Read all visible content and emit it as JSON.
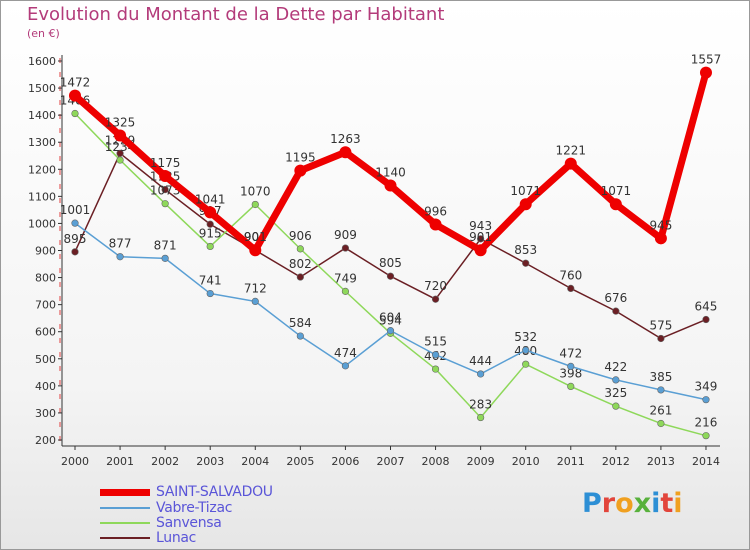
{
  "title": "Evolution du Montant de la Dette par Habitant",
  "subtitle": "(en €)",
  "logo_text": [
    "P",
    "r",
    "o",
    "x",
    "i",
    "t",
    "i"
  ],
  "colors": {
    "title": "#b33b7a",
    "legend_text": "#5a55d8"
  },
  "chart_data": {
    "type": "line",
    "x": [
      "2000",
      "2001",
      "2002",
      "2003",
      "2004",
      "2005",
      "2006",
      "2007",
      "2008",
      "2009",
      "2010",
      "2011",
      "2012",
      "2013",
      "2014"
    ],
    "ylim": [
      200,
      1600
    ],
    "yticks": [
      200,
      300,
      400,
      500,
      600,
      700,
      800,
      900,
      1000,
      1100,
      1200,
      1300,
      1400,
      1500,
      1600
    ],
    "grid": false,
    "legend_position": "bottom-left",
    "series": [
      {
        "name": "Lunac",
        "color": "#6b1f24",
        "emphasis": false,
        "values": [
          895,
          1259,
          1125,
          997,
          901,
          802,
          909,
          805,
          720,
          943,
          853,
          760,
          676,
          575,
          645
        ]
      },
      {
        "name": "Sanvensa",
        "color": "#8ed85a",
        "emphasis": false,
        "values": [
          1406,
          1234,
          1073,
          915,
          1070,
          906,
          749,
          594,
          462,
          283,
          480,
          398,
          325,
          261,
          216
        ]
      },
      {
        "name": "Vabre-Tizac",
        "color": "#5a9fd4",
        "emphasis": false,
        "values": [
          1001,
          877,
          871,
          741,
          712,
          584,
          474,
          604,
          515,
          444,
          532,
          472,
          422,
          385,
          349
        ]
      },
      {
        "name": "SAINT-SALVADOU",
        "color": "#ee0000",
        "emphasis": true,
        "values": [
          1472,
          1325,
          1175,
          1041,
          901,
          1195,
          1263,
          1140,
          996,
          901,
          1071,
          1221,
          1071,
          945,
          1557
        ]
      }
    ]
  },
  "legend": [
    {
      "label": "SAINT-SALVADOU",
      "color": "#ee0000"
    },
    {
      "label": "Vabre-Tizac",
      "color": "#5a9fd4"
    },
    {
      "label": "Sanvensa",
      "color": "#8ed85a"
    },
    {
      "label": "Lunac",
      "color": "#6b1f24"
    }
  ]
}
